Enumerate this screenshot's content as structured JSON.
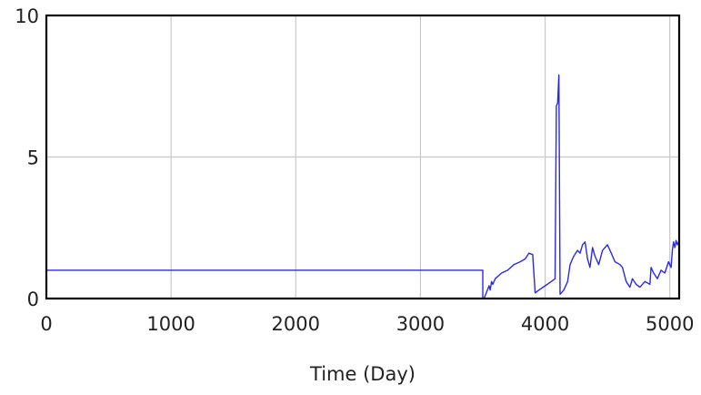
{
  "chart_data": {
    "type": "line",
    "xlabel": "Time (Day)",
    "ylabel": "",
    "xlim": [
      0,
      5075
    ],
    "ylim": [
      0,
      10
    ],
    "x_ticks": [
      0,
      1000,
      2000,
      3000,
      4000,
      5000
    ],
    "y_ticks": [
      0,
      5,
      10
    ],
    "x_tick_labels": [
      "0",
      "1000",
      "2000",
      "3000",
      "4000",
      "5000"
    ],
    "y_tick_labels": [
      "0",
      "5",
      "10"
    ],
    "grid": true,
    "line_color": "#2a2ae6",
    "grid_color": "#c8c8c8",
    "series": [
      {
        "x": [
          0,
          3500,
          3500,
          3510,
          3550,
          3560,
          3570,
          3580,
          3600,
          3650,
          3700,
          3750,
          3800,
          3840,
          3870,
          3900,
          3920,
          3950,
          4000,
          4050,
          4080,
          4090,
          4100,
          4110,
          4120,
          4130,
          4150,
          4180,
          4200,
          4230,
          4260,
          4280,
          4300,
          4320,
          4340,
          4360,
          4380,
          4400,
          4430,
          4460,
          4500,
          4530,
          4560,
          4600,
          4620,
          4650,
          4680,
          4700,
          4730,
          4760,
          4800,
          4840,
          4850,
          4870,
          4900,
          4930,
          4960,
          4990,
          5010,
          5020,
          5030,
          5040,
          5050,
          5060,
          5070
        ],
        "y": [
          1.0,
          1.0,
          0.0,
          0.0,
          0.45,
          0.3,
          0.6,
          0.5,
          0.7,
          0.9,
          1.0,
          1.2,
          1.3,
          1.4,
          1.6,
          1.55,
          0.2,
          0.3,
          0.45,
          0.6,
          0.7,
          6.8,
          6.9,
          7.9,
          0.15,
          0.2,
          0.3,
          0.6,
          1.2,
          1.5,
          1.7,
          1.6,
          1.9,
          2.0,
          1.4,
          1.1,
          1.8,
          1.5,
          1.2,
          1.7,
          1.9,
          1.6,
          1.3,
          1.2,
          1.1,
          0.6,
          0.4,
          0.7,
          0.5,
          0.4,
          0.6,
          0.5,
          1.1,
          0.9,
          0.7,
          1.0,
          0.9,
          1.3,
          1.1,
          1.7,
          2.0,
          1.8,
          2.05,
          1.9,
          2.0
        ]
      }
    ]
  }
}
